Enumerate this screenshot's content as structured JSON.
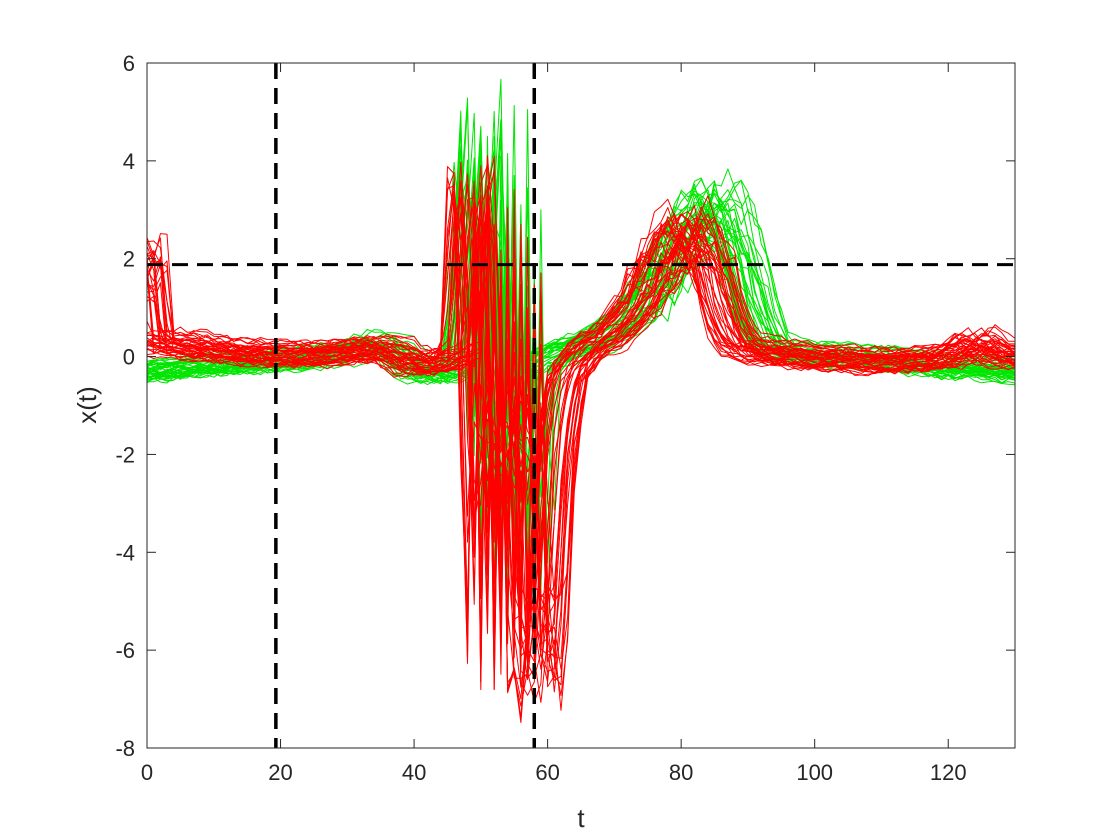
{
  "chart_data": {
    "type": "line",
    "title": "",
    "xlabel": "t",
    "ylabel": "x(t)",
    "xlim": [
      0,
      130
    ],
    "ylim": [
      -8,
      6
    ],
    "xticks": [
      0,
      20,
      40,
      60,
      80,
      100,
      120
    ],
    "yticks": [
      -8,
      -6,
      -4,
      -2,
      0,
      2,
      4,
      6
    ],
    "xtick_labels": [
      "0",
      "20",
      "40",
      "60",
      "80",
      100,
      120
    ],
    "ytick_labels": [
      "-8",
      "-6",
      "-4",
      "-2",
      "0",
      "2",
      "4",
      "6"
    ],
    "grid": false,
    "legend": "none",
    "reference_lines": {
      "vertical": [
        19.3,
        58.0
      ],
      "horizontal": [
        1.88
      ],
      "color": "#000000",
      "style": "dashed"
    },
    "groups": [
      {
        "color": "#00e600",
        "count": 40,
        "representative": {
          "x": [
            0,
            5,
            10,
            15,
            20,
            25,
            30,
            34,
            37,
            40,
            44,
            47,
            49,
            50,
            51,
            52,
            53,
            54,
            55,
            56,
            57,
            58,
            60,
            63,
            66,
            70,
            74,
            78,
            82,
            85,
            87,
            89,
            91,
            93,
            96,
            100,
            110,
            120,
            125,
            130
          ],
          "y": [
            -0.3,
            -0.2,
            -0.15,
            -0.1,
            -0.05,
            0.0,
            0.1,
            0.3,
            0.2,
            -0.25,
            -0.3,
            -0.25,
            2.5,
            5.0,
            -2.0,
            4.6,
            -4.5,
            4.3,
            -5.8,
            2.5,
            -5.0,
            -0.3,
            0.0,
            0.2,
            0.3,
            0.6,
            1.1,
            1.9,
            2.8,
            3.1,
            2.8,
            2.0,
            1.0,
            0.3,
            0.1,
            0.05,
            0.0,
            -0.2,
            -0.2,
            -0.3
          ]
        }
      },
      {
        "color": "#ff0000",
        "count": 40,
        "representative": {
          "x": [
            0,
            0.6,
            5,
            10,
            15,
            20,
            25,
            30,
            34,
            37,
            40,
            44,
            47,
            48,
            49,
            50,
            51,
            52,
            53,
            54,
            55,
            56,
            57,
            58,
            59,
            60,
            61,
            63,
            66,
            70,
            74,
            78,
            81,
            83,
            85,
            87,
            89,
            92,
            96,
            100,
            110,
            120,
            124,
            127,
            130
          ],
          "y": [
            1.88,
            0.3,
            0.25,
            0.15,
            0.1,
            0.05,
            0.05,
            0.1,
            0.2,
            0.1,
            -0.15,
            -0.1,
            0.1,
            3.2,
            3.5,
            -1.0,
            -5.8,
            3.3,
            -6.3,
            2.8,
            -6.2,
            1.8,
            -6.0,
            -5.5,
            -6.5,
            -5.0,
            -2.0,
            -0.3,
            0.2,
            0.5,
            1.2,
            2.2,
            2.6,
            2.3,
            1.5,
            0.6,
            0.2,
            0.1,
            0.05,
            0.0,
            -0.1,
            0.0,
            0.35,
            0.1,
            0.0
          ]
        }
      }
    ]
  }
}
